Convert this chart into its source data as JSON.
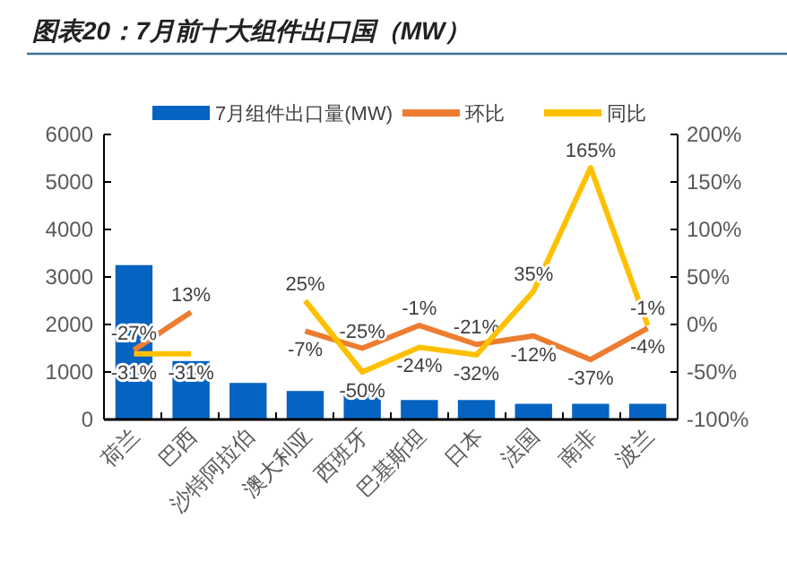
{
  "chart_data": {
    "type": "bar",
    "title": "图表20：7月前十大组件出口国（MW）",
    "categories": [
      "荷兰",
      "巴西",
      "沙特阿拉伯",
      "澳大利亚",
      "西班牙",
      "巴基斯坦",
      "日本",
      "法国",
      "南非",
      "波兰"
    ],
    "series": [
      {
        "name": "7月组件出口量(MW)",
        "color": "#0563c1",
        "values": [
          3250,
          1230,
          770,
          600,
          580,
          410,
          410,
          330,
          330,
          330
        ]
      },
      {
        "name": "环比",
        "type": "line",
        "axis": "y2",
        "color": "#ed7d31",
        "values": [
          -27,
          13,
          null,
          -7,
          -25,
          -1,
          -21,
          -12,
          -37,
          -4
        ],
        "value_labels": [
          "-27%",
          "13%",
          null,
          "-7%",
          "-25%",
          "-1%",
          "-21%",
          "-12%",
          "-37%",
          "-4%"
        ]
      },
      {
        "name": "同比",
        "type": "line",
        "axis": "y2",
        "color": "#ffc000",
        "values": [
          -31,
          -31,
          null,
          25,
          -50,
          -24,
          -32,
          35,
          165,
          -1
        ],
        "value_labels": [
          "-31%",
          "-31%",
          null,
          "25%",
          "-50%",
          "-24%",
          "-32%",
          "35%",
          "165%",
          "-1%"
        ]
      }
    ],
    "ylim": [
      0,
      6000
    ],
    "yticks": [
      0,
      1000,
      2000,
      3000,
      4000,
      5000,
      6000
    ],
    "y2lim": [
      -100,
      200
    ],
    "y2ticks": [
      {
        "value": -100,
        "label": "-100%"
      },
      {
        "value": -50,
        "label": "-50%"
      },
      {
        "value": 0,
        "label": "0%"
      },
      {
        "value": 50,
        "label": "50%"
      },
      {
        "value": 100,
        "label": "100%"
      },
      {
        "value": 150,
        "label": "150%"
      },
      {
        "value": 200,
        "label": "200%"
      }
    ],
    "legend": "top",
    "grid": false
  }
}
